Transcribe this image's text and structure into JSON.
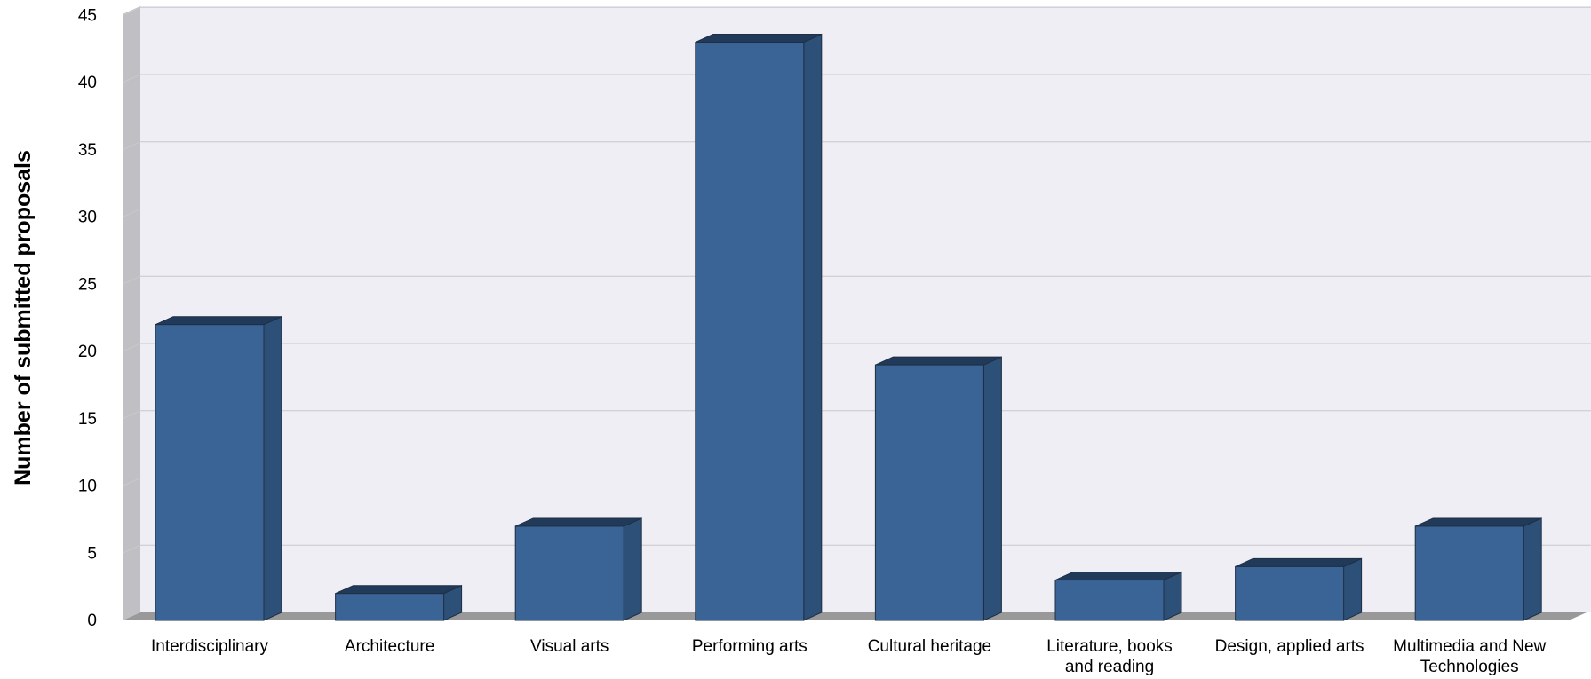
{
  "chart_data": {
    "type": "bar",
    "title": "",
    "xlabel": "",
    "ylabel": "Number of submitted proposals",
    "ylim": [
      0,
      45
    ],
    "yticks": [
      0,
      5,
      10,
      15,
      20,
      25,
      30,
      35,
      40,
      45
    ],
    "grid": true,
    "legend": "none",
    "style": "3d",
    "categories": [
      [
        "Interdisciplinary"
      ],
      [
        "Architecture"
      ],
      [
        "Visual arts"
      ],
      [
        "Performing arts"
      ],
      [
        "Cultural heritage"
      ],
      [
        "Literature, books",
        "and reading"
      ],
      [
        "Design, applied arts"
      ],
      [
        "Multimedia and New",
        "Technologies"
      ]
    ],
    "values": [
      22,
      2,
      7,
      43,
      19,
      3,
      4,
      7
    ],
    "colors": {
      "bar_front": "#3a6496",
      "bar_side": "#2d5078",
      "bar_top": "#213a5a",
      "plot_back": "#efeef4",
      "wall_side": "#c0c0c4",
      "floor": "#999999",
      "grid": "#c8c8cc"
    }
  }
}
